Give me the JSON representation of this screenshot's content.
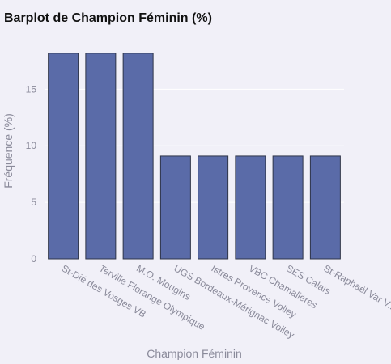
{
  "chart_data": {
    "type": "bar",
    "title": "Barplot de Champion Féminin (%)",
    "xlabel": "Champion Féminin",
    "ylabel": "Fréquence (%)",
    "categories": [
      "St-Dié des Vosges VB",
      "Terville Florange Olympique",
      "M.O. Mougins",
      "UGS Bordeaux-Mérignac Volley",
      "Istres Provence Volley",
      "VBC Chamalières",
      "SES Calais",
      "St-Raphaël Var V..."
    ],
    "values": [
      18.18,
      18.18,
      18.18,
      9.09,
      9.09,
      9.09,
      9.09,
      9.09
    ],
    "yticks": [
      0,
      5,
      10,
      15
    ],
    "ylim": [
      0,
      19.1
    ],
    "grid": true,
    "colors": {
      "bar": "#5a6ba8",
      "background": "#f1f0f8"
    }
  }
}
